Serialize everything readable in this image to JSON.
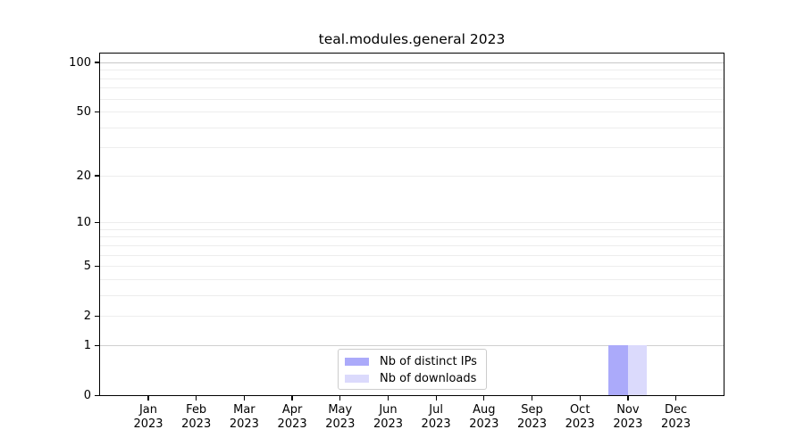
{
  "chart_data": {
    "type": "bar",
    "title": "teal.modules.general 2023",
    "categories": [
      [
        "Jan",
        "2023"
      ],
      [
        "Feb",
        "2023"
      ],
      [
        "Mar",
        "2023"
      ],
      [
        "Apr",
        "2023"
      ],
      [
        "May",
        "2023"
      ],
      [
        "Jun",
        "2023"
      ],
      [
        "Jul",
        "2023"
      ],
      [
        "Aug",
        "2023"
      ],
      [
        "Sep",
        "2023"
      ],
      [
        "Oct",
        "2023"
      ],
      [
        "Nov",
        "2023"
      ],
      [
        "Dec",
        "2023"
      ]
    ],
    "series": [
      {
        "name": "Nb of distinct IPs",
        "color": "#abaafa",
        "values": [
          0,
          0,
          0,
          0,
          0,
          0,
          0,
          0,
          0,
          0,
          1,
          0
        ]
      },
      {
        "name": "Nb of downloads",
        "color": "#dbdafc",
        "values": [
          0,
          0,
          0,
          0,
          0,
          0,
          0,
          0,
          0,
          0,
          1,
          0
        ]
      }
    ],
    "yscale": "log1p",
    "ylim": [
      0,
      113
    ],
    "yticks": [
      0,
      1,
      2,
      5,
      10,
      20,
      50,
      100
    ],
    "grid": {
      "minor_values": [
        2,
        3,
        4,
        5,
        6,
        7,
        8,
        9,
        10,
        20,
        30,
        40,
        50,
        60,
        70,
        80,
        90
      ],
      "minor_color": "#ededed",
      "emphasized": {
        "1": "#d0d0d0",
        "100": "#c8c8c8"
      }
    },
    "legend_position": "bottom-center",
    "xlabel": "",
    "ylabel": ""
  }
}
